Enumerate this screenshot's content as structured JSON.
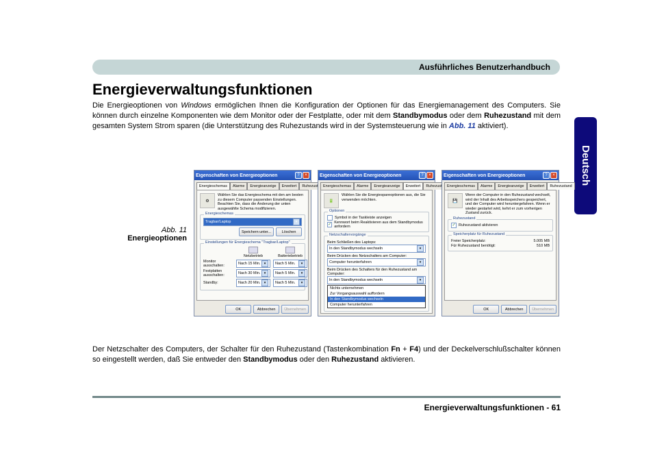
{
  "header": {
    "title": "Ausführliches Benutzerhandbuch"
  },
  "heading": "Energieverwaltungsfunktionen",
  "intro": {
    "p1a": "Die Energieoptionen von ",
    "windows": "Windows",
    "p1b": " ermöglichen Ihnen die Konfiguration der Optionen für das Energiemanagement des Computers. Sie können durch einzelne Komponenten wie dem Monitor oder der Festplatte, oder mit dem ",
    "standby": "Standbymodus",
    "p1c": " oder dem ",
    "ruhe": "Ruhezustand",
    "p1d": " mit dem gesamten System Strom sparen (die Unterstützung des Ruhezustands wird in der Systemsteuerung wie in  ",
    "abb": "Abb. 11",
    "p1e": " aktiviert)."
  },
  "lang_tab": "Deutsch",
  "figure": {
    "abb": "Abb. 11",
    "label": "Energieoptionen"
  },
  "window_title": "Eigenschaften von Energieoptionen",
  "tabs": {
    "t1": "Energieschemas",
    "t2": "Alarme",
    "t3": "Energieanzeige",
    "t4": "Erweitert",
    "t5": "Ruhezustand"
  },
  "win1": {
    "desc": "Wählen Sie das Energieschema mit den am besten zu diesem Computer passenden Einstellungen. Beachten Sie, dass die Änderung der unten ausgewählte Schema modifizieren.",
    "scheme_group": "Energieschemas",
    "scheme_value": "Tragbar/Laptop",
    "save_as": "Speichern unter...",
    "delete": "Löschen",
    "settings_group": "Einstellungen für Energieschema \"Tragbar/Laptop\"",
    "col_net": "Netzbetrieb",
    "col_bat": "Batteriebetrieb",
    "row_monitor": "Monitor ausschalten:",
    "row_disk": "Festplatten ausschalten:",
    "row_standby": "Standby:",
    "v_monitor_net": "Nach 15 Min.",
    "v_monitor_bat": "Nach 5 Min.",
    "v_disk_net": "Nach 30 Min.",
    "v_disk_bat": "Nach 5 Min.",
    "v_standby_net": "Nach 20 Min.",
    "v_standby_bat": "Nach 5 Min."
  },
  "win2": {
    "desc": "Wählen Sie die Energiespareoptionen aus, die Sie verwenden möchten.",
    "options_group": "Optionen",
    "chk1": "Symbol in der Taskleiste anzeigen",
    "chk2": "Kennwort beim Reaktivieren aus dem Standbymodus anfordern",
    "power_group": "Netzschaltervorgänge",
    "lbl1": "Beim Schließen des Laptops:",
    "val1": "In den Standbymodus wechseln",
    "lbl2": "Beim Drücken des Netzschalters am Computer:",
    "val2": "Computer herunterfahren",
    "lbl3": "Beim Drücken des Schalters für den Ruhezustand am Computer:",
    "val3": "In den Standbymodus wechseln",
    "list": {
      "o1": "Nichts unternehmen",
      "o2": "Zur Vorgangsauswahl auffordern",
      "o3": "In den Standbymodus wechseln",
      "o4": "Computer herunterfahren"
    }
  },
  "win3": {
    "desc": "Wenn der Computer in den Ruhezustand wechselt, wird der Inhalt des Arbeitsspeichers gespeichert, und der Computer wird heruntergefahren. Wenn er wieder gestartet wird, kehrt er zum vorherigen Zustand zurück.",
    "hiber_group": "Ruhezustand",
    "chk": "Ruhezustand aktivieren",
    "disk_group": "Speicherplatz für Ruhezustand",
    "free_label": "Freier Speicherplatz:",
    "free_val": "5.005 MB",
    "req_label": "Für Ruhezustand benötigt:",
    "req_val": "510 MB"
  },
  "buttons": {
    "ok": "OK",
    "cancel": "Abbrechen",
    "apply": "Übernehmen"
  },
  "para2": {
    "a": "Der Netzschalter des Computers, der Schalter für den Ruhezustand (Tastenkombination ",
    "fn": "Fn",
    "plus": " + ",
    "f4": "F4",
    "b": ") und der Deckelverschlußschalter können so eingestellt werden, daß Sie entweder den ",
    "standby": "Standbymodus",
    "c": " oder den ",
    "ruhe": "Ruhezustand",
    "d": " aktivieren."
  },
  "footer": {
    "text": "Energieverwaltungsfunktionen - 61"
  },
  "colors": {
    "header_bg": "#c5d6d6",
    "lang_bg": "#0d0a7a",
    "titlebar_a": "#3b6fd6",
    "divider": "#708788",
    "link": "#1a3aa0"
  }
}
